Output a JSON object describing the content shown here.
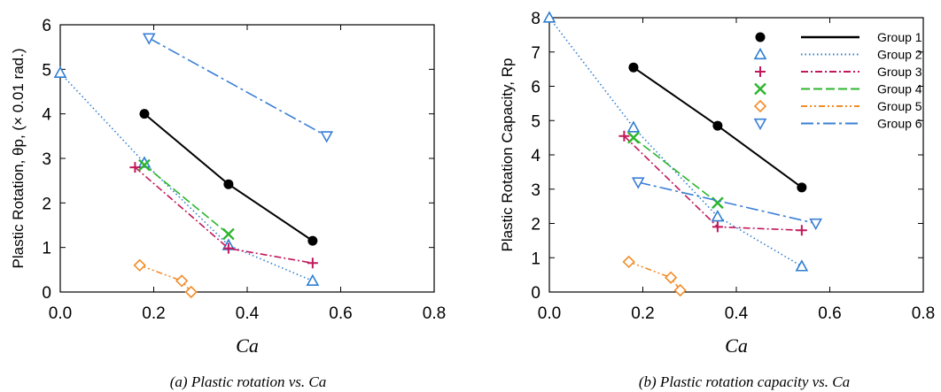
{
  "chart_data": [
    {
      "type": "line",
      "panel": "a",
      "ylabel": "Plastic Rotation, θp, (× 0.01 rad.)",
      "xlabel": "Ca",
      "caption": "(a)  Plastic rotation vs. Ca",
      "xlim": [
        0,
        0.8
      ],
      "ylim": [
        0,
        6
      ],
      "xticks": [
        "0.0",
        "0.2",
        "0.4",
        "0.6",
        "0.8"
      ],
      "yticks": [
        "0",
        "1",
        "2",
        "3",
        "4",
        "5",
        "6"
      ],
      "series": [
        {
          "group": 1,
          "x": [
            0.18,
            0.36,
            0.54
          ],
          "y": [
            4.0,
            2.42,
            1.15
          ]
        },
        {
          "group": 2,
          "x": [
            0.0,
            0.18,
            0.36,
            0.54
          ],
          "y": [
            4.92,
            2.9,
            1.05,
            0.25
          ]
        },
        {
          "group": 3,
          "x": [
            0.16,
            0.36,
            0.54
          ],
          "y": [
            2.8,
            0.98,
            0.65
          ]
        },
        {
          "group": 4,
          "x": [
            0.18,
            0.36
          ],
          "y": [
            2.85,
            1.3
          ]
        },
        {
          "group": 5,
          "x": [
            0.17,
            0.26,
            0.28
          ],
          "y": [
            0.6,
            0.25,
            0.0
          ]
        },
        {
          "group": 6,
          "x": [
            0.19,
            0.57
          ],
          "y": [
            5.7,
            3.5
          ]
        }
      ]
    },
    {
      "type": "line",
      "panel": "b",
      "ylabel": "Plastic Rotation Capacity, Rp",
      "xlabel": "Ca",
      "caption": "(b)  Plastic rotation capacity vs. Ca",
      "xlim": [
        0,
        0.8
      ],
      "ylim": [
        0,
        8
      ],
      "xticks": [
        "0.0",
        "0.2",
        "0.4",
        "0.6",
        "0.8"
      ],
      "yticks": [
        "0",
        "1",
        "2",
        "3",
        "4",
        "5",
        "6",
        "7",
        "8"
      ],
      "legend_position": "top-right",
      "series": [
        {
          "group": 1,
          "x": [
            0.18,
            0.36,
            0.54
          ],
          "y": [
            6.55,
            4.85,
            3.05
          ]
        },
        {
          "group": 2,
          "x": [
            0.0,
            0.18,
            0.36,
            0.54
          ],
          "y": [
            8.0,
            4.8,
            2.2,
            0.75
          ]
        },
        {
          "group": 3,
          "x": [
            0.16,
            0.36,
            0.54
          ],
          "y": [
            4.55,
            1.9,
            1.8
          ]
        },
        {
          "group": 4,
          "x": [
            0.18,
            0.36
          ],
          "y": [
            4.5,
            2.6
          ]
        },
        {
          "group": 5,
          "x": [
            0.17,
            0.26,
            0.28
          ],
          "y": [
            0.88,
            0.42,
            0.05
          ]
        },
        {
          "group": 6,
          "x": [
            0.19,
            0.57
          ],
          "y": [
            3.2,
            2.0
          ]
        }
      ]
    }
  ],
  "legend": [
    {
      "group": 1,
      "label": "Group 1",
      "color": "#000000",
      "marker": "filled-circle",
      "dash": "solid"
    },
    {
      "group": 2,
      "label": "Group 2",
      "color": "#2f7fd0",
      "marker": "open-triangle-up",
      "dash": "dotted"
    },
    {
      "group": 3,
      "label": "Group 3",
      "color": "#c2185b",
      "marker": "plus",
      "dash": "dash-dot"
    },
    {
      "group": 4,
      "label": "Group 4",
      "color": "#2cb52c",
      "marker": "x",
      "dash": "dashed"
    },
    {
      "group": 5,
      "label": "Group 5",
      "color": "#f28c28",
      "marker": "open-diamond",
      "dash": "dash-dot-dot"
    },
    {
      "group": 6,
      "label": "Group 6",
      "color": "#3a7fd5",
      "marker": "open-triangle-down",
      "dash": "long-dash-dot"
    }
  ]
}
